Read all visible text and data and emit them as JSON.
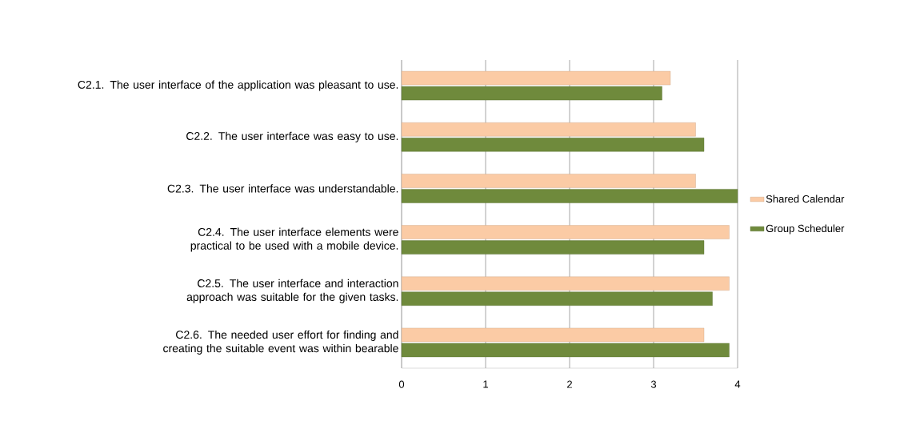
{
  "chart_data": {
    "type": "bar",
    "orientation": "horizontal",
    "categories": [
      "C2.1. The user interface of the application was pleasant to use.",
      "C2.2. The user interface was easy to use.",
      "C2.3. The user interface was understandable.",
      "C2.4. The user interface elements were practical to be used with a mobile device.",
      "C2.5. The user interface and interaction approach was suitable for the given tasks.",
      "C2.6. The needed user effort for finding and creating the suitable event was within bearable"
    ],
    "series": [
      {
        "name": "Shared Calendar",
        "color": "#fbcba5",
        "values": [
          3.2,
          3.5,
          3.5,
          3.9,
          3.9,
          3.6
        ]
      },
      {
        "name": "Group Scheduler",
        "color": "#6f8a3c",
        "values": [
          3.1,
          3.6,
          4.0,
          3.6,
          3.7,
          3.9
        ]
      }
    ],
    "xlim": [
      0,
      4
    ],
    "xticks": [
      0,
      1,
      2,
      3,
      4
    ],
    "grid": "x",
    "legend": "right"
  }
}
